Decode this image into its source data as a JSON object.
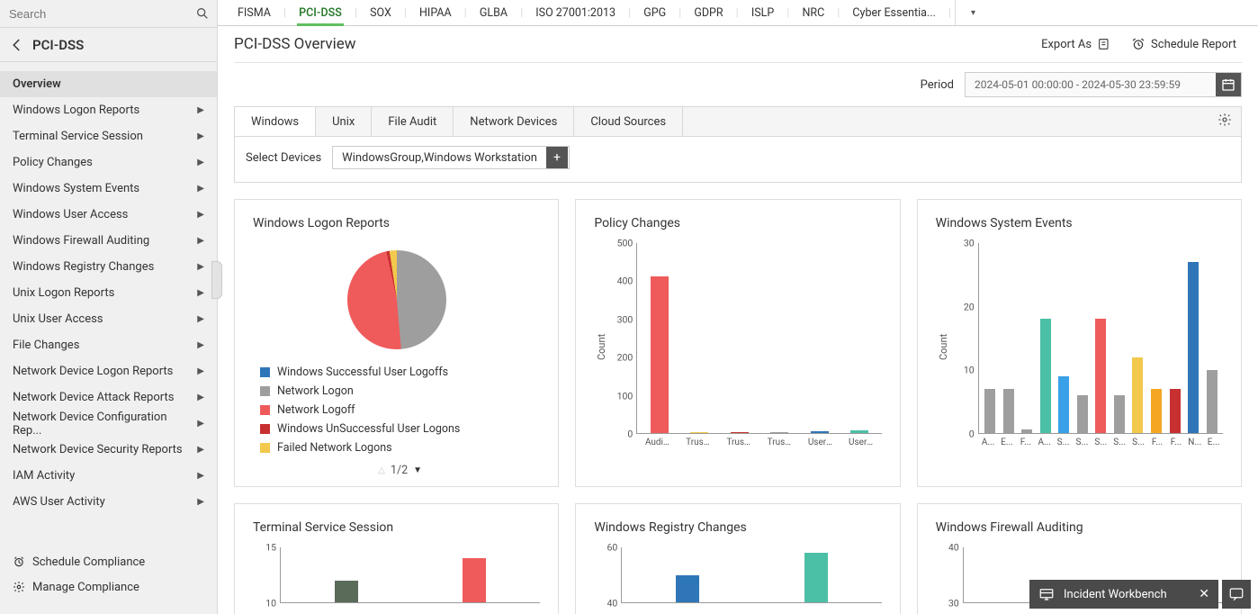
{
  "search": {
    "placeholder": "Search"
  },
  "breadcrumb": {
    "title": "PCI-DSS"
  },
  "sidebar": {
    "items": [
      {
        "label": "Overview",
        "expandable": false,
        "active": true
      },
      {
        "label": "Windows Logon Reports",
        "expandable": true
      },
      {
        "label": "Terminal Service Session",
        "expandable": true
      },
      {
        "label": "Policy Changes",
        "expandable": true
      },
      {
        "label": "Windows System Events",
        "expandable": true
      },
      {
        "label": "Windows User Access",
        "expandable": true
      },
      {
        "label": "Windows Firewall Auditing",
        "expandable": true
      },
      {
        "label": "Windows Registry Changes",
        "expandable": true
      },
      {
        "label": "Unix Logon Reports",
        "expandable": true
      },
      {
        "label": "Unix User Access",
        "expandable": true
      },
      {
        "label": "File Changes",
        "expandable": true
      },
      {
        "label": "Network Device Logon Reports",
        "expandable": true
      },
      {
        "label": "Network Device Attack Reports",
        "expandable": true
      },
      {
        "label": "Network Device Configuration Rep...",
        "expandable": true
      },
      {
        "label": "Network Device Security Reports",
        "expandable": true
      },
      {
        "label": "IAM Activity",
        "expandable": true
      },
      {
        "label": "AWS User Activity",
        "expandable": true
      }
    ],
    "footer": [
      {
        "label": "Schedule Compliance",
        "icon": "clock"
      },
      {
        "label": "Manage Compliance",
        "icon": "gear"
      }
    ]
  },
  "top_tabs": [
    "FISMA",
    "PCI-DSS",
    "SOX",
    "HIPAA",
    "GLBA",
    "ISO 27001:2013",
    "GPG",
    "GDPR",
    "ISLP",
    "NRC",
    "Cyber Essentia..."
  ],
  "top_tabs_active": 1,
  "page_title": "PCI-DSS Overview",
  "header_actions": {
    "export": "Export As",
    "schedule": "Schedule Report"
  },
  "period": {
    "label": "Period",
    "value": "2024-05-01 00:00:00 - 2024-05-30 23:59:59"
  },
  "source_tabs": [
    "Windows",
    "Unix",
    "File Audit",
    "Network Devices",
    "Cloud Sources"
  ],
  "source_tab_active": 0,
  "devices": {
    "label": "Select Devices",
    "value": "WindowsGroup,Windows Workstation"
  },
  "cards": {
    "logon_pie": {
      "title": "Windows Logon Reports",
      "slices": [
        {
          "label": "Windows Successful User Logoffs",
          "color": "#2f76b8",
          "value": 1
        },
        {
          "label": "Network Logon",
          "color": "#9e9e9e",
          "value": 49
        },
        {
          "label": "Network Logoff",
          "color": "#ef5b5b",
          "value": 48
        },
        {
          "label": "Windows UnSuccessful User Logons",
          "color": "#c73030",
          "value": 1
        },
        {
          "label": "Failed Network Logons",
          "color": "#f2c94c",
          "value": 1
        }
      ],
      "pager_text": "1/2"
    },
    "policy": {
      "title": "Policy Changes",
      "ylabel": "Count",
      "ylim": [
        0,
        500
      ],
      "ystep": 100,
      "bars": [
        {
          "label": "Audit...",
          "value": 412,
          "color": "#ef5b5b"
        },
        {
          "label": "Trust...",
          "value": 3,
          "color": "#f2c94c"
        },
        {
          "label": "Trust...",
          "value": 3,
          "color": "#c73030"
        },
        {
          "label": "Trust...",
          "value": 3,
          "color": "#9e9e9e"
        },
        {
          "label": "User ...",
          "value": 5,
          "color": "#2f76b8"
        },
        {
          "label": "User ...",
          "value": 8,
          "color": "#4cc0a6"
        }
      ]
    },
    "sysevents": {
      "title": "Windows System Events",
      "ylabel": "Count",
      "ylim": [
        0,
        30
      ],
      "ystep": 10,
      "bars": [
        {
          "label": "A...",
          "value": 7,
          "color": "#9e9e9e"
        },
        {
          "label": "E...",
          "value": 7,
          "color": "#9e9e9e"
        },
        {
          "label": "F...",
          "value": 0.5,
          "color": "#9e9e9e"
        },
        {
          "label": "A...",
          "value": 18,
          "color": "#4cc0a6"
        },
        {
          "label": "S...",
          "value": 9,
          "color": "#3aa0e8"
        },
        {
          "label": "S...",
          "value": 6,
          "color": "#9e9e9e"
        },
        {
          "label": "S...",
          "value": 18,
          "color": "#ef5b5b"
        },
        {
          "label": "S...",
          "value": 6,
          "color": "#9e9e9e"
        },
        {
          "label": "S...",
          "value": 12,
          "color": "#f2c94c"
        },
        {
          "label": "F...",
          "value": 7,
          "color": "#f5a623"
        },
        {
          "label": "F...",
          "value": 7,
          "color": "#c73030"
        },
        {
          "label": "N...",
          "value": 27,
          "color": "#2f76b8"
        },
        {
          "label": "E...",
          "value": 10,
          "color": "#9e9e9e"
        }
      ]
    },
    "terminal": {
      "title": "Terminal Service Session",
      "ylim": [
        10,
        15
      ],
      "yticks": [
        10,
        15
      ],
      "bars": [
        {
          "value": 12,
          "color": "#5a6b5a"
        },
        {
          "value": 14,
          "color": "#ef5b5b"
        }
      ]
    },
    "registry": {
      "title": "Windows Registry Changes",
      "ylim": [
        40,
        60
      ],
      "yticks": [
        40,
        60
      ],
      "bars": [
        {
          "value": 50,
          "color": "#2f76b8"
        },
        {
          "value": 58,
          "color": "#4cc0a6"
        }
      ]
    },
    "firewall": {
      "title": "Windows Firewall Auditing",
      "ylim": [
        30,
        40
      ],
      "yticks": [
        30,
        40
      ],
      "bars": [
        {
          "value": 33,
          "color": "#4cc0a6"
        }
      ]
    }
  },
  "incident": {
    "label": "Incident Workbench"
  }
}
